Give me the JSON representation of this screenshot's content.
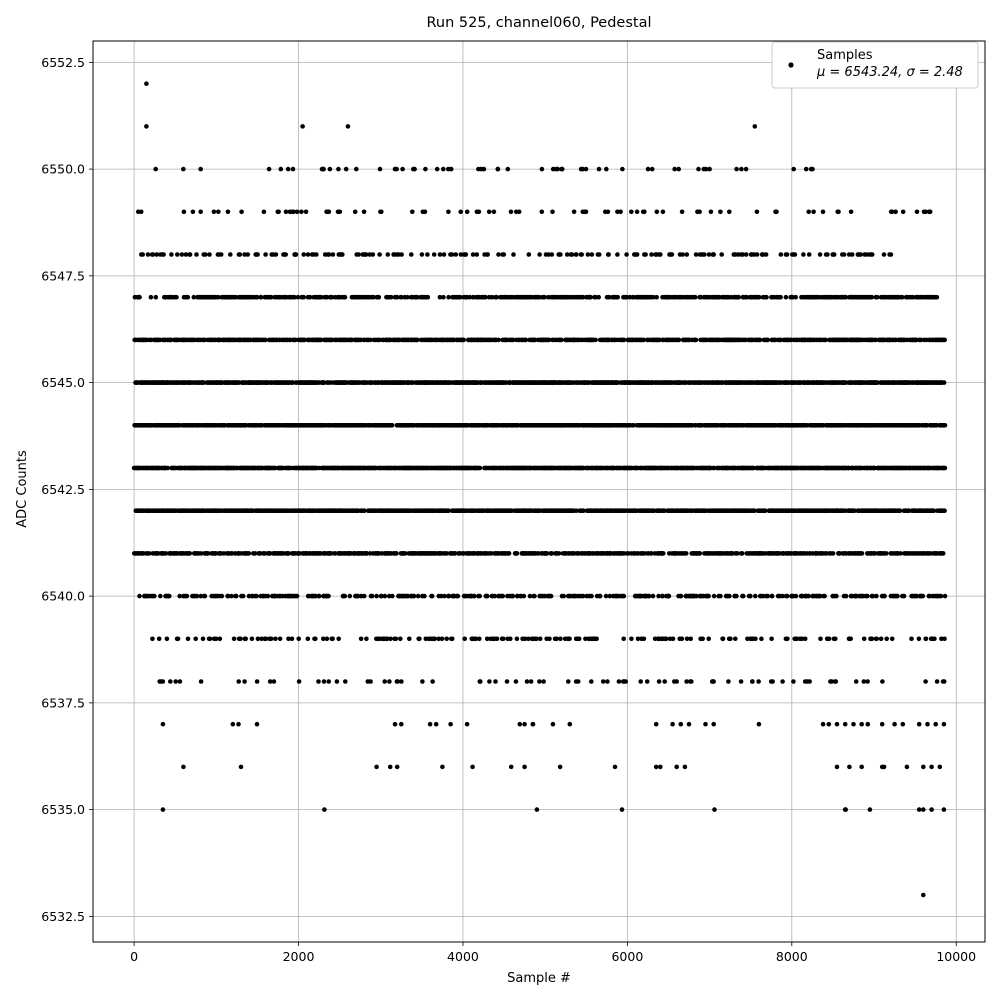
{
  "chart_data": {
    "type": "scatter",
    "title": "Run 525, channel060, Pedestal",
    "xlabel": "Sample #",
    "ylabel": "ADC Counts",
    "xlim": [
      -500,
      10350
    ],
    "ylim": [
      6531.9,
      6553.0
    ],
    "x_ticks": [
      0,
      2000,
      4000,
      6000,
      8000,
      10000
    ],
    "x_tick_labels": [
      "0",
      "2000",
      "4000",
      "6000",
      "8000",
      "10000"
    ],
    "y_ticks": [
      6532.5,
      6535.0,
      6537.5,
      6540.0,
      6542.5,
      6545.0,
      6547.5,
      6550.0,
      6552.5
    ],
    "y_tick_labels": [
      "6532.5",
      "6535.0",
      "6537.5",
      "6540.0",
      "6542.5",
      "6545.0",
      "6547.5",
      "6550.0",
      "6552.5"
    ],
    "grid": true,
    "marker_color": "#000000",
    "legend": {
      "placement": "top-right",
      "entries": [
        {
          "label": "Samples",
          "stats": "μ = 6543.24, σ = 2.48"
        }
      ]
    },
    "series": [
      {
        "name": "Samples",
        "n_samples": 9860,
        "level_distribution": [
          {
            "value": 6533,
            "density": 0.0001,
            "range": [
              9500,
              9700
            ]
          },
          {
            "value": 6535,
            "density": 0.003,
            "range": [
              300,
              9900
            ]
          },
          {
            "value": 6536,
            "density": 0.006,
            "range": [
              500,
              9900
            ]
          },
          {
            "value": 6537,
            "density": 0.012,
            "range": [
              300,
              9900
            ]
          },
          {
            "value": 6538,
            "density": 0.07,
            "range": [
              150,
              9900
            ]
          },
          {
            "value": 6539,
            "density": 0.18,
            "range": [
              150,
              9900
            ]
          },
          {
            "value": 6540,
            "density": 0.32,
            "range": [
              50,
              9900
            ]
          },
          {
            "value": 6541,
            "density": 0.55,
            "range": [
              0,
              9900
            ]
          },
          {
            "value": 6542,
            "density": 0.75,
            "range": [
              0,
              9900
            ]
          },
          {
            "value": 6543,
            "density": 0.85,
            "range": [
              0,
              9900
            ]
          },
          {
            "value": 6544,
            "density": 0.8,
            "range": [
              0,
              9900
            ]
          },
          {
            "value": 6545,
            "density": 0.78,
            "range": [
              0,
              9900
            ]
          },
          {
            "value": 6546,
            "density": 0.62,
            "range": [
              0,
              9900
            ]
          },
          {
            "value": 6547,
            "density": 0.45,
            "range": [
              0,
              9800
            ]
          },
          {
            "value": 6548,
            "density": 0.18,
            "range": [
              0,
              9200
            ]
          },
          {
            "value": 6549,
            "density": 0.07,
            "range": [
              0,
              9700
            ]
          },
          {
            "value": 6550,
            "density": 0.05,
            "range": [
              0,
              8400
            ]
          },
          {
            "value": 6551,
            "density": 0.0004,
            "range": [
              100,
              7600
            ]
          },
          {
            "value": 6552,
            "density": 0.0001,
            "range": [
              100,
              200
            ]
          }
        ],
        "points": [
          [
            150,
            6552
          ],
          [
            150,
            6551
          ],
          [
            2050,
            6551
          ],
          [
            2600,
            6551
          ],
          [
            7550,
            6551
          ],
          [
            9600,
            6533
          ],
          [
            350,
            6535
          ],
          [
            4900,
            6535
          ],
          [
            8650,
            6535
          ],
          [
            8950,
            6535
          ],
          [
            9550,
            6535
          ],
          [
            9600,
            6535
          ],
          [
            9700,
            6535
          ],
          [
            9850,
            6535
          ],
          [
            600,
            6536
          ],
          [
            2950,
            6536
          ],
          [
            3200,
            6536
          ],
          [
            3750,
            6536
          ],
          [
            4750,
            6536
          ],
          [
            5850,
            6536
          ],
          [
            6350,
            6536
          ],
          [
            6400,
            6536
          ],
          [
            6600,
            6536
          ],
          [
            6700,
            6536
          ],
          [
            8550,
            6536
          ],
          [
            8700,
            6536
          ],
          [
            8850,
            6536
          ],
          [
            9100,
            6536
          ],
          [
            9400,
            6536
          ],
          [
            9600,
            6536
          ],
          [
            9700,
            6536
          ],
          [
            9800,
            6536
          ],
          [
            350,
            6537
          ],
          [
            1200,
            6537
          ],
          [
            3250,
            6537
          ],
          [
            3600,
            6537
          ],
          [
            3850,
            6537
          ],
          [
            4050,
            6537
          ],
          [
            4750,
            6537
          ],
          [
            4850,
            6537
          ],
          [
            6350,
            6537
          ],
          [
            6550,
            6537
          ],
          [
            6650,
            6537
          ],
          [
            6750,
            6537
          ],
          [
            6950,
            6537
          ],
          [
            7050,
            6537
          ],
          [
            7600,
            6537
          ],
          [
            8450,
            6537
          ],
          [
            8550,
            6537
          ],
          [
            8650,
            6537
          ],
          [
            8750,
            6537
          ],
          [
            8850,
            6537
          ],
          [
            9100,
            6537
          ],
          [
            9250,
            6537
          ],
          [
            9350,
            6537
          ],
          [
            9550,
            6537
          ],
          [
            9650,
            6537
          ],
          [
            9750,
            6537
          ],
          [
            9850,
            6537
          ],
          [
            9670,
            6549
          ],
          [
            9680,
            6547
          ]
        ]
      }
    ]
  }
}
